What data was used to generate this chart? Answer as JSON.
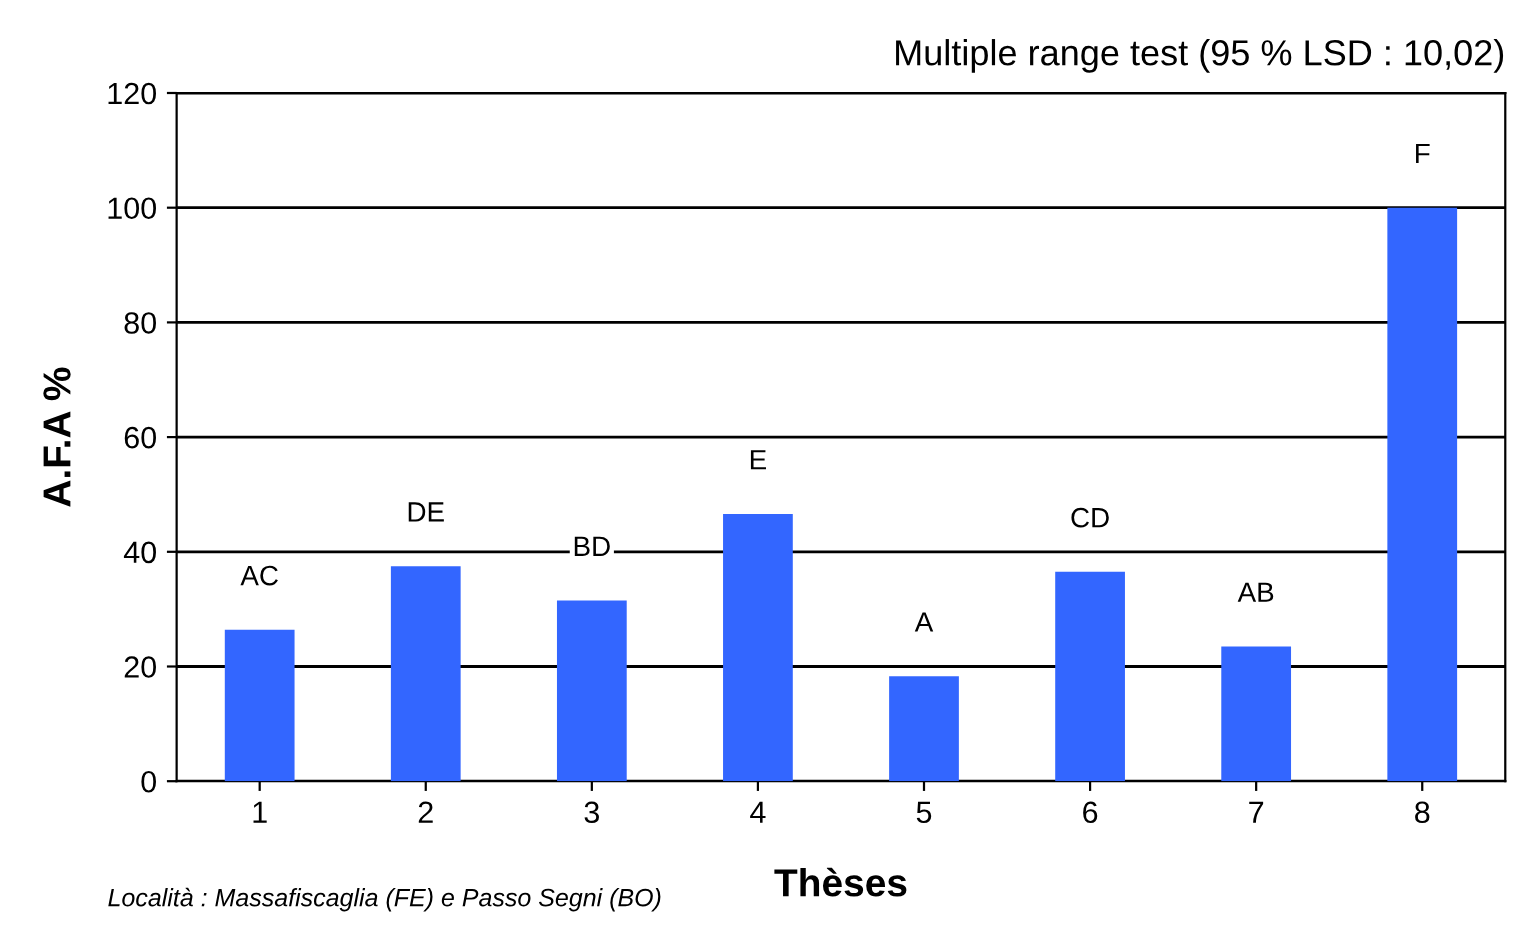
{
  "chart_data": {
    "type": "bar",
    "title": "Multiple range test (95 % LSD : 10,02)",
    "xlabel": "Thèses",
    "ylabel": "A.F.A %",
    "categories": [
      "1",
      "2",
      "3",
      "4",
      "5",
      "6",
      "7",
      "8"
    ],
    "values": [
      26.4,
      37.5,
      31.5,
      46.6,
      18.3,
      36.5,
      23.5,
      100
    ],
    "color": "#3366ff",
    "ylim": [
      0,
      120
    ],
    "yticks": [
      0,
      20,
      40,
      60,
      80,
      100,
      120
    ],
    "grid": "y",
    "annotations": [
      {
        "text": "AC",
        "x": "1",
        "y": 26.4
      },
      {
        "text": "DE",
        "x": "2",
        "y": 37.5
      },
      {
        "text": "BD",
        "x": "3",
        "y": 31.5
      },
      {
        "text": "E",
        "x": "4",
        "y": 46.6
      },
      {
        "text": "A",
        "x": "5",
        "y": 18.3
      },
      {
        "text": "CD",
        "x": "6",
        "y": 36.5
      },
      {
        "text": "AB",
        "x": "7",
        "y": 23.5
      },
      {
        "text": "F",
        "x": "8",
        "y": 100
      },
      "Località : Massafiscaglia (FE) e Passo Segni (BO)"
    ]
  }
}
